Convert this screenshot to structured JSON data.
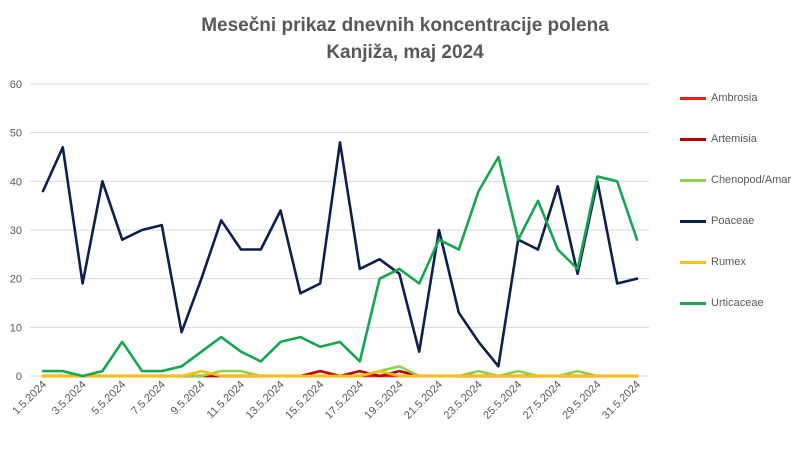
{
  "chart_data": {
    "type": "line",
    "title_line1": "Mesečni prikaz dnevnih koncentracije polena",
    "title_line2": "Kanjiža, maj 2024",
    "ylim": [
      0,
      60
    ],
    "yticks": [
      0,
      10,
      20,
      30,
      40,
      50,
      60
    ],
    "grid": true,
    "legend_position": "right",
    "categories": [
      "1.5.2024",
      "2.5.2024",
      "3.5.2024",
      "4.5.2024",
      "5.5.2024",
      "6.5.2024",
      "7.5.2024",
      "8.5.2024",
      "9.5.2024",
      "10.5.2024",
      "11.5.2024",
      "12.5.2024",
      "13.5.2024",
      "14.5.2024",
      "15.5.2024",
      "16.5.2024",
      "17.5.2024",
      "18.5.2024",
      "19.5.2024",
      "20.5.2024",
      "21.5.2024",
      "22.5.2024",
      "23.5.2024",
      "24.5.2024",
      "25.5.2024",
      "26.5.2024",
      "27.5.2024",
      "28.5.2024",
      "29.5.2024",
      "30.5.2024",
      "31.5.2024"
    ],
    "xtick_labels": [
      "1.5.2024",
      "3.5.2024",
      "5.5.2024",
      "7.5.2024",
      "9.5.2024",
      "11.5.2024",
      "13.5.2024",
      "15.5.2024",
      "17.5.2024",
      "19.5.2024",
      "21.5.2024",
      "23.5.2024",
      "25.5.2024",
      "27.5.2024",
      "29.5.2024",
      "31.5.2024"
    ],
    "series": [
      {
        "name": "Ambrosia",
        "color": "#e8211a",
        "values": [
          0,
          0,
          0,
          0,
          0,
          0,
          0,
          0,
          0,
          0,
          0,
          0,
          0,
          0,
          0,
          0,
          0,
          0,
          0,
          0,
          0,
          0,
          0,
          0,
          0,
          0,
          0,
          0,
          0,
          0,
          0
        ]
      },
      {
        "name": "Artemisia",
        "color": "#c00000",
        "values": [
          0,
          0,
          0,
          0,
          0,
          0,
          0,
          0,
          0,
          0,
          0,
          0,
          0,
          0,
          1,
          0,
          1,
          0,
          1,
          0,
          0,
          0,
          0,
          0,
          0,
          0,
          0,
          0,
          0,
          0,
          0
        ]
      },
      {
        "name": "Chenopod/Amar",
        "color": "#92d050",
        "values": [
          0,
          0,
          0,
          0,
          0,
          0,
          0,
          0,
          0,
          1,
          1,
          0,
          0,
          0,
          0,
          0,
          0,
          1,
          2,
          0,
          0,
          0,
          1,
          0,
          1,
          0,
          0,
          1,
          0,
          0,
          0
        ]
      },
      {
        "name": "Poaceae",
        "color": "#0d1f4c",
        "values": [
          38,
          47,
          19,
          40,
          28,
          30,
          31,
          9,
          20,
          32,
          26,
          26,
          34,
          17,
          19,
          48,
          22,
          24,
          21,
          5,
          30,
          13,
          7,
          2,
          28,
          26,
          39,
          21,
          40,
          19,
          20
        ]
      },
      {
        "name": "Rumex",
        "color": "#ffc000",
        "values": [
          0,
          0,
          0,
          0,
          0,
          0,
          0,
          0,
          1,
          0,
          0,
          0,
          0,
          0,
          0,
          0,
          0,
          1,
          0,
          0,
          0,
          0,
          0,
          0,
          0,
          0,
          0,
          0,
          0,
          0,
          0
        ]
      },
      {
        "name": "Urticaceae",
        "color": "#16a650",
        "values": [
          1,
          1,
          0,
          1,
          7,
          1,
          1,
          2,
          5,
          8,
          5,
          3,
          7,
          8,
          6,
          7,
          3,
          20,
          22,
          19,
          28,
          26,
          38,
          45,
          28,
          36,
          26,
          22,
          41,
          40,
          28
        ]
      }
    ]
  }
}
